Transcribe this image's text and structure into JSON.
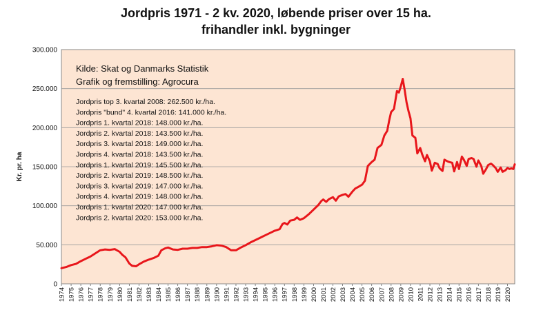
{
  "chart_data": {
    "type": "line",
    "title_line1": "Jordpris 1971 - 2 kv. 2020, løbende priser over 15 ha.",
    "title_line2": "frihandler inkl. bygninger",
    "ylabel": "Kr. pr. ha",
    "xlabel": "",
    "ylim": [
      0,
      300000
    ],
    "xlim": [
      1974,
      2020.75
    ],
    "y_ticks": [
      {
        "value": 0,
        "label": "0"
      },
      {
        "value": 50000,
        "label": "50.000"
      },
      {
        "value": 100000,
        "label": "100.000"
      },
      {
        "value": 150000,
        "label": "150.000"
      },
      {
        "value": 200000,
        "label": "200.000"
      },
      {
        "value": 250000,
        "label": "250.000"
      },
      {
        "value": 300000,
        "label": "300.000"
      }
    ],
    "x_tick_labels": [
      "1974",
      "1975",
      "1976",
      "1977",
      "1978",
      "1979",
      "1980",
      "1981",
      "1982",
      "1983",
      "1984",
      "1985",
      "1986",
      "1987",
      "1988",
      "1989",
      "1990",
      "1991",
      "1992",
      "1993",
      "1994",
      "1995",
      "1996",
      "1997",
      "1998",
      "1999",
      "2000",
      "2001",
      "2002",
      "2003",
      "2004",
      "2005",
      "2006",
      "2007",
      "2008",
      "2009",
      "2010",
      "2011",
      "2012",
      "2013",
      "2014",
      "2015",
      "2016",
      "2017",
      "2018",
      "2019",
      "2020"
    ],
    "grid": "horizontal",
    "plot_background": "#fde5d3",
    "line_color": "#e8161b",
    "annotations_source": [
      "Kilde: Skat og Danmarks Statistik",
      "Grafik og fremstilling: Agrocura"
    ],
    "annotations_prices": [
      "Jordpris top 3. kvartal 2008: 262.500 kr./ha.",
      "Jordpris \"bund\" 4. kvartal 2016: 141.000 kr./ha.",
      "Jordpris 1. kvartal 2018: 148.000 kr./ha.",
      "Jordpris 2. kvartal 2018: 143.500 kr./ha.",
      "Jordpris 3. kvartal 2018: 149.000 kr./ha.",
      "Jordpris 4. kvartal 2018: 143.500 kr./ha.",
      "Jordpris 1. kvartal 2019: 145.500 kr./ha.",
      "Jordpris 2. kvartal 2019: 148.500 kr./ha.",
      "Jordpris 3. kvartal 2019: 147.000 kr./ha.",
      "Jordpris 4. kvartal 2019: 148.000 kr./ha.",
      "Jordpris 1. kvartal 2020: 147.000 kr./ha.",
      "Jordpris 2. kvartal 2020: 153.000 kr./ha."
    ],
    "series": [
      {
        "points": [
          [
            1974.0,
            20000
          ],
          [
            1974.5,
            21500
          ],
          [
            1975.0,
            24000
          ],
          [
            1975.5,
            25500
          ],
          [
            1976.0,
            29000
          ],
          [
            1976.5,
            32000
          ],
          [
            1977.0,
            35000
          ],
          [
            1977.5,
            39000
          ],
          [
            1978.0,
            43000
          ],
          [
            1978.5,
            44000
          ],
          [
            1979.0,
            43500
          ],
          [
            1979.5,
            44500
          ],
          [
            1980.0,
            41000
          ],
          [
            1980.3,
            37000
          ],
          [
            1980.6,
            34000
          ],
          [
            1981.0,
            26000
          ],
          [
            1981.3,
            23000
          ],
          [
            1981.7,
            22500
          ],
          [
            1982.0,
            25000
          ],
          [
            1982.5,
            28500
          ],
          [
            1983.0,
            31000
          ],
          [
            1983.5,
            33000
          ],
          [
            1984.0,
            36000
          ],
          [
            1984.3,
            43000
          ],
          [
            1984.7,
            45500
          ],
          [
            1985.0,
            46500
          ],
          [
            1985.5,
            44000
          ],
          [
            1986.0,
            43500
          ],
          [
            1986.5,
            45000
          ],
          [
            1987.0,
            45000
          ],
          [
            1987.5,
            46000
          ],
          [
            1988.0,
            46000
          ],
          [
            1988.5,
            47000
          ],
          [
            1989.0,
            47000
          ],
          [
            1989.5,
            48000
          ],
          [
            1990.0,
            49500
          ],
          [
            1990.5,
            49000
          ],
          [
            1991.0,
            47000
          ],
          [
            1991.5,
            43000
          ],
          [
            1992.0,
            43000
          ],
          [
            1992.5,
            46500
          ],
          [
            1993.0,
            49500
          ],
          [
            1993.5,
            53000
          ],
          [
            1994.0,
            56000
          ],
          [
            1994.5,
            59000
          ],
          [
            1995.0,
            62000
          ],
          [
            1995.5,
            65000
          ],
          [
            1996.0,
            68000
          ],
          [
            1996.5,
            70000
          ],
          [
            1996.8,
            76500
          ],
          [
            1997.0,
            78000
          ],
          [
            1997.3,
            76000
          ],
          [
            1997.6,
            81000
          ],
          [
            1998.0,
            82000
          ],
          [
            1998.3,
            85000
          ],
          [
            1998.6,
            82000
          ],
          [
            1999.0,
            84000
          ],
          [
            1999.5,
            89000
          ],
          [
            2000.0,
            95000
          ],
          [
            2000.5,
            101000
          ],
          [
            2000.8,
            106000
          ],
          [
            2001.0,
            108000
          ],
          [
            2001.3,
            105000
          ],
          [
            2001.6,
            108500
          ],
          [
            2002.0,
            111000
          ],
          [
            2002.3,
            106500
          ],
          [
            2002.6,
            112000
          ],
          [
            2003.0,
            114000
          ],
          [
            2003.3,
            115000
          ],
          [
            2003.6,
            111500
          ],
          [
            2004.0,
            118000
          ],
          [
            2004.3,
            122000
          ],
          [
            2004.6,
            124000
          ],
          [
            2005.0,
            127000
          ],
          [
            2005.3,
            132000
          ],
          [
            2005.6,
            151000
          ],
          [
            2006.0,
            156000
          ],
          [
            2006.3,
            159000
          ],
          [
            2006.6,
            174000
          ],
          [
            2007.0,
            178000
          ],
          [
            2007.3,
            190000
          ],
          [
            2007.6,
            196000
          ],
          [
            2007.8,
            209000
          ],
          [
            2008.0,
            220000
          ],
          [
            2008.3,
            224000
          ],
          [
            2008.6,
            247000
          ],
          [
            2008.8,
            245000
          ],
          [
            2009.0,
            253000
          ],
          [
            2009.2,
            262500
          ],
          [
            2009.4,
            248000
          ],
          [
            2009.6,
            232000
          ],
          [
            2009.8,
            221000
          ],
          [
            2010.0,
            212000
          ],
          [
            2010.2,
            190000
          ],
          [
            2010.5,
            187000
          ],
          [
            2010.7,
            167000
          ],
          [
            2011.0,
            174000
          ],
          [
            2011.2,
            166000
          ],
          [
            2011.5,
            157000
          ],
          [
            2011.7,
            165000
          ],
          [
            2012.0,
            157000
          ],
          [
            2012.2,
            145000
          ],
          [
            2012.5,
            155000
          ],
          [
            2012.8,
            153500
          ],
          [
            2013.0,
            148000
          ],
          [
            2013.3,
            144500
          ],
          [
            2013.5,
            159000
          ],
          [
            2013.8,
            157000
          ],
          [
            2014.0,
            156000
          ],
          [
            2014.3,
            155000
          ],
          [
            2014.5,
            144000
          ],
          [
            2014.8,
            156000
          ],
          [
            2015.0,
            147000
          ],
          [
            2015.3,
            163000
          ],
          [
            2015.5,
            159000
          ],
          [
            2015.8,
            151000
          ],
          [
            2016.0,
            160000
          ],
          [
            2016.3,
            161000
          ],
          [
            2016.5,
            160000
          ],
          [
            2016.8,
            150000
          ],
          [
            2017.0,
            158000
          ],
          [
            2017.3,
            151000
          ],
          [
            2017.5,
            141000
          ],
          [
            2017.8,
            147000
          ],
          [
            2018.0,
            152000
          ],
          [
            2018.3,
            154000
          ],
          [
            2018.5,
            152000
          ],
          [
            2018.8,
            148000
          ],
          [
            2019.0,
            143500
          ],
          [
            2019.3,
            149000
          ],
          [
            2019.5,
            143500
          ],
          [
            2019.8,
            145500
          ],
          [
            2020.0,
            148500
          ],
          [
            2020.2,
            147000
          ],
          [
            2020.4,
            148000
          ],
          [
            2020.6,
            147000
          ],
          [
            2020.75,
            153000
          ]
        ]
      }
    ]
  }
}
